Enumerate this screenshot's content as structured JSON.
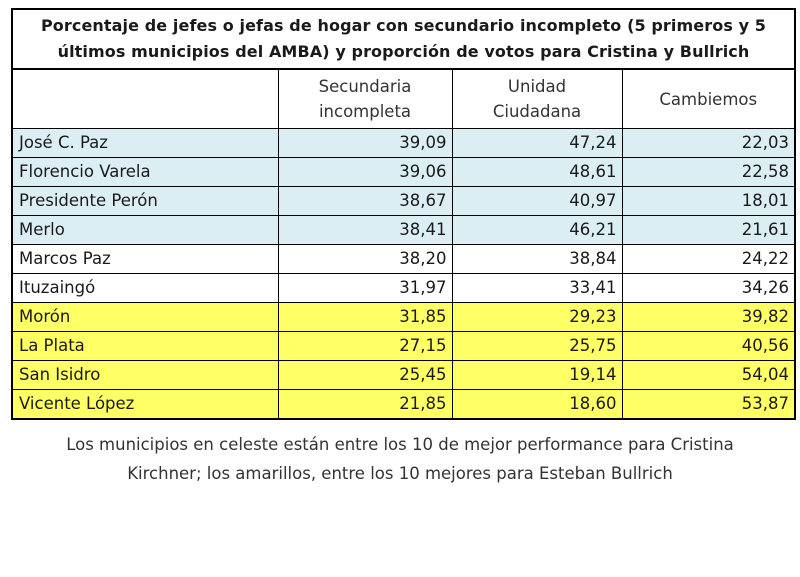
{
  "title": {
    "line1": "Porcentaje de jefes o jefas de hogar con secundario incompleto (5 primeros y 5",
    "line2": "últimos municipios del AMBA) y proporción de votos para Cristina y Bullrich"
  },
  "columns": {
    "municipio": "",
    "secundaria_line1": "Secundaria",
    "secundaria_line2": "incompleta",
    "unidad_line1": "Unidad",
    "unidad_line2": "Ciudadana",
    "cambiemos": "Cambiemos"
  },
  "rows": [
    {
      "municipio": "José C. Paz",
      "secundaria": "39,09",
      "unidad": "47,24",
      "cambiemos": "22,03",
      "group": "cristina"
    },
    {
      "municipio": "Florencio Varela",
      "secundaria": "39,06",
      "unidad": "48,61",
      "cambiemos": "22,58",
      "group": "cristina"
    },
    {
      "municipio": "Presidente Perón",
      "secundaria": "38,67",
      "unidad": "40,97",
      "cambiemos": "18,01",
      "group": "cristina"
    },
    {
      "municipio": "Merlo",
      "secundaria": "38,41",
      "unidad": "46,21",
      "cambiemos": "21,61",
      "group": "cristina"
    },
    {
      "municipio": "Marcos Paz",
      "secundaria": "38,20",
      "unidad": "38,84",
      "cambiemos": "24,22",
      "group": "plain"
    },
    {
      "municipio": "Ituzaingó",
      "secundaria": "31,97",
      "unidad": "33,41",
      "cambiemos": "34,26",
      "group": "plain"
    },
    {
      "municipio": "Morón",
      "secundaria": "31,85",
      "unidad": "29,23",
      "cambiemos": "39,82",
      "group": "bullrich"
    },
    {
      "municipio": "La Plata",
      "secundaria": "27,15",
      "unidad": "25,75",
      "cambiemos": "40,56",
      "group": "bullrich"
    },
    {
      "municipio": "San Isidro",
      "secundaria": "25,45",
      "unidad": "19,14",
      "cambiemos": "54,04",
      "group": "bullrich"
    },
    {
      "municipio": "Vicente López",
      "secundaria": "21,85",
      "unidad": "18,60",
      "cambiemos": "53,87",
      "group": "bullrich"
    }
  ],
  "colors": {
    "cristina_row": "#dbeef4",
    "bullrich_row": "#ffff66",
    "plain_row": "#ffffff"
  },
  "note": {
    "line1": "Los municipios en celeste están entre los 10 de mejor performance para Cristina",
    "line2": "Kirchner; los amarillos, entre los 10 mejores para Esteban Bullrich"
  }
}
